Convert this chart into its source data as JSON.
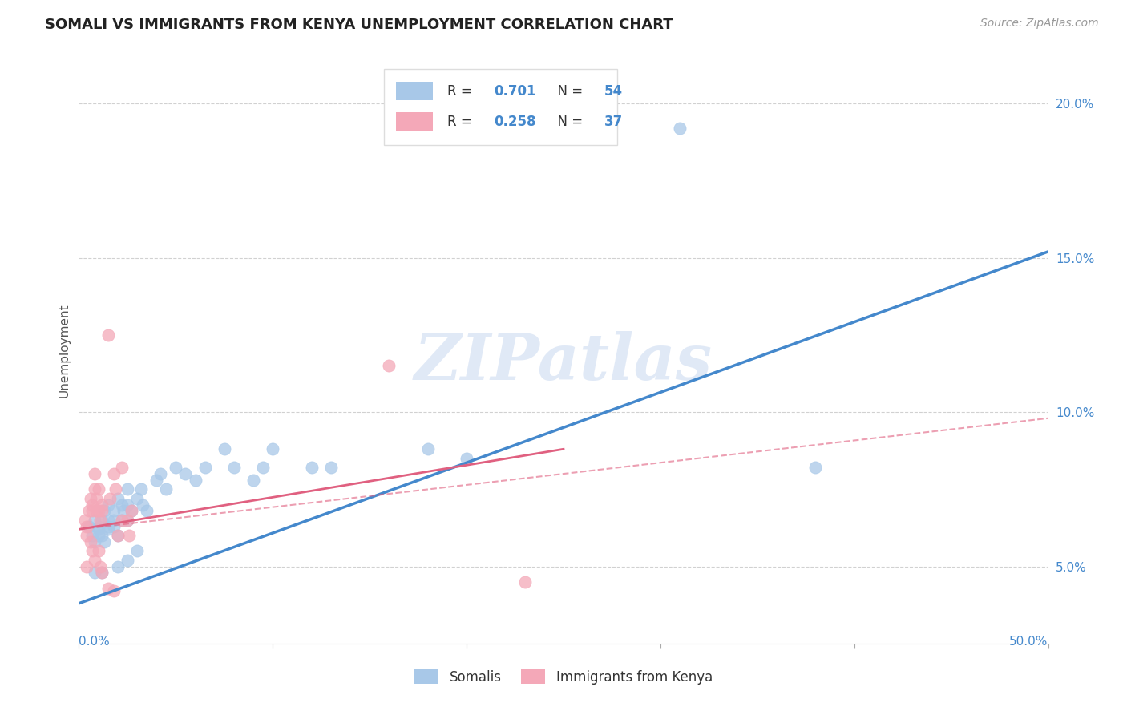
{
  "title": "SOMALI VS IMMIGRANTS FROM KENYA UNEMPLOYMENT CORRELATION CHART",
  "source": "Source: ZipAtlas.com",
  "ylabel": "Unemployment",
  "xlim": [
    0.0,
    0.5
  ],
  "ylim": [
    0.025,
    0.215
  ],
  "xticks": [
    0.0,
    0.5
  ],
  "xticklabels": [
    "0.0%",
    "50.0%"
  ],
  "yticks": [
    0.05,
    0.1,
    0.15,
    0.2
  ],
  "yticklabels": [
    "5.0%",
    "10.0%",
    "15.0%",
    "20.0%"
  ],
  "somali_color": "#a8c8e8",
  "kenya_color": "#f4a8b8",
  "trendline1_color": "#4488cc",
  "trendline2_color": "#e06080",
  "watermark": "ZIPatlas",
  "watermark_color": "#c8d8f0",
  "somali_scatter": [
    [
      0.005,
      0.063
    ],
    [
      0.007,
      0.06
    ],
    [
      0.008,
      0.065
    ],
    [
      0.008,
      0.058
    ],
    [
      0.01,
      0.062
    ],
    [
      0.01,
      0.06
    ],
    [
      0.01,
      0.063
    ],
    [
      0.012,
      0.06
    ],
    [
      0.012,
      0.065
    ],
    [
      0.013,
      0.068
    ],
    [
      0.013,
      0.058
    ],
    [
      0.015,
      0.062
    ],
    [
      0.015,
      0.07
    ],
    [
      0.015,
      0.065
    ],
    [
      0.015,
      0.063
    ],
    [
      0.018,
      0.068
    ],
    [
      0.018,
      0.065
    ],
    [
      0.018,
      0.063
    ],
    [
      0.02,
      0.072
    ],
    [
      0.02,
      0.06
    ],
    [
      0.022,
      0.07
    ],
    [
      0.022,
      0.065
    ],
    [
      0.023,
      0.068
    ],
    [
      0.025,
      0.065
    ],
    [
      0.025,
      0.07
    ],
    [
      0.025,
      0.075
    ],
    [
      0.027,
      0.068
    ],
    [
      0.03,
      0.072
    ],
    [
      0.032,
      0.075
    ],
    [
      0.033,
      0.07
    ],
    [
      0.035,
      0.068
    ],
    [
      0.04,
      0.078
    ],
    [
      0.042,
      0.08
    ],
    [
      0.045,
      0.075
    ],
    [
      0.05,
      0.082
    ],
    [
      0.055,
      0.08
    ],
    [
      0.06,
      0.078
    ],
    [
      0.065,
      0.082
    ],
    [
      0.075,
      0.088
    ],
    [
      0.08,
      0.082
    ],
    [
      0.09,
      0.078
    ],
    [
      0.095,
      0.082
    ],
    [
      0.1,
      0.088
    ],
    [
      0.12,
      0.082
    ],
    [
      0.13,
      0.082
    ],
    [
      0.008,
      0.048
    ],
    [
      0.012,
      0.048
    ],
    [
      0.02,
      0.05
    ],
    [
      0.025,
      0.052
    ],
    [
      0.03,
      0.055
    ],
    [
      0.18,
      0.088
    ],
    [
      0.2,
      0.085
    ],
    [
      0.31,
      0.192
    ],
    [
      0.38,
      0.082
    ]
  ],
  "kenya_scatter": [
    [
      0.003,
      0.065
    ],
    [
      0.004,
      0.063
    ],
    [
      0.005,
      0.068
    ],
    [
      0.006,
      0.072
    ],
    [
      0.007,
      0.07
    ],
    [
      0.007,
      0.068
    ],
    [
      0.008,
      0.08
    ],
    [
      0.008,
      0.075
    ],
    [
      0.009,
      0.068
    ],
    [
      0.009,
      0.072
    ],
    [
      0.01,
      0.075
    ],
    [
      0.01,
      0.068
    ],
    [
      0.011,
      0.065
    ],
    [
      0.012,
      0.07
    ],
    [
      0.012,
      0.068
    ],
    [
      0.015,
      0.125
    ],
    [
      0.016,
      0.072
    ],
    [
      0.018,
      0.08
    ],
    [
      0.019,
      0.075
    ],
    [
      0.022,
      0.082
    ],
    [
      0.025,
      0.065
    ],
    [
      0.026,
      0.06
    ],
    [
      0.027,
      0.068
    ],
    [
      0.006,
      0.058
    ],
    [
      0.007,
      0.055
    ],
    [
      0.008,
      0.052
    ],
    [
      0.01,
      0.055
    ],
    [
      0.011,
      0.05
    ],
    [
      0.012,
      0.048
    ],
    [
      0.015,
      0.043
    ],
    [
      0.018,
      0.042
    ],
    [
      0.004,
      0.06
    ],
    [
      0.16,
      0.115
    ],
    [
      0.23,
      0.045
    ],
    [
      0.004,
      0.05
    ],
    [
      0.02,
      0.06
    ],
    [
      0.022,
      0.065
    ]
  ],
  "trendline1_x": [
    0.0,
    0.5
  ],
  "trendline1_y": [
    0.038,
    0.152
  ],
  "trendline2_x": [
    0.0,
    0.25
  ],
  "trendline2_y": [
    0.062,
    0.088
  ]
}
